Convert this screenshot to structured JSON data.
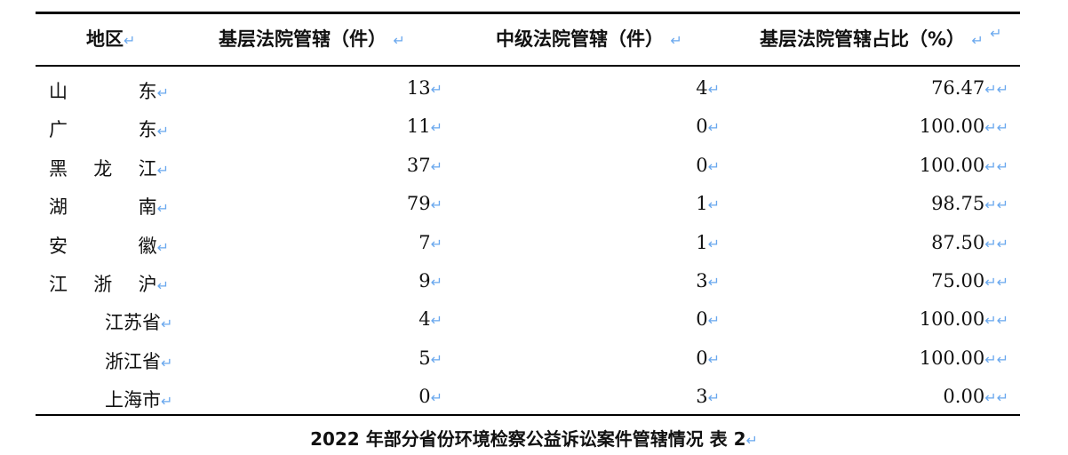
{
  "table": {
    "headers": [
      "地区",
      "基层法院管辖（件）",
      "中级法院管辖（件）",
      "基层法院管辖占比（%）"
    ],
    "rows": [
      {
        "region": "山东",
        "sub": false,
        "basic": "13",
        "intermediate": "4",
        "ratio": "76.47"
      },
      {
        "region": "广东",
        "sub": false,
        "basic": "11",
        "intermediate": "0",
        "ratio": "100.00"
      },
      {
        "region": "黑龙江",
        "sub": false,
        "basic": "37",
        "intermediate": "0",
        "ratio": "100.00"
      },
      {
        "region": "湖南",
        "sub": false,
        "basic": "79",
        "intermediate": "1",
        "ratio": "98.75"
      },
      {
        "region": "安徽",
        "sub": false,
        "basic": "7",
        "intermediate": "1",
        "ratio": "87.50"
      },
      {
        "region": "江浙沪",
        "sub": false,
        "basic": "9",
        "intermediate": "3",
        "ratio": "75.00"
      },
      {
        "region": "江苏省",
        "sub": true,
        "basic": "4",
        "intermediate": "0",
        "ratio": "100.00"
      },
      {
        "region": "浙江省",
        "sub": true,
        "basic": "5",
        "intermediate": "0",
        "ratio": "100.00"
      },
      {
        "region": "上海市",
        "sub": true,
        "basic": "0",
        "intermediate": "3",
        "ratio": "0.00"
      }
    ]
  },
  "caption": "2022 年部分省份环境检察公益诉讼案件管辖情况  表 2",
  "colors": {
    "paragraph_mark": "#6aa8ee"
  },
  "icons": {
    "paragraph_mark": "paragraph-return-icon"
  }
}
